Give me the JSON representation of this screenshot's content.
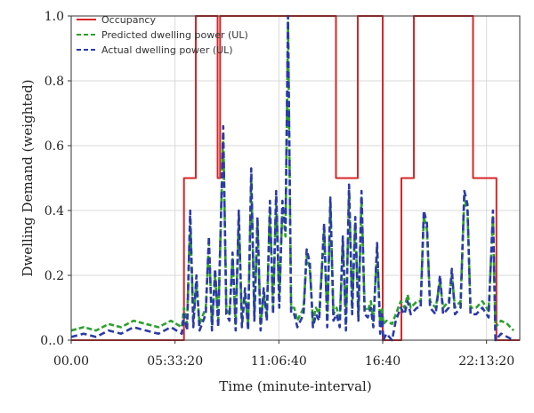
{
  "chart_data": {
    "type": "line",
    "xlabel": "Time (minute-interval)",
    "ylabel": "Dwelling Demand (weighted)",
    "xlim": [
      0,
      1440
    ],
    "ylim": [
      0,
      1.0
    ],
    "x_ticks": [
      {
        "value": 0,
        "label": "00.00"
      },
      {
        "value": 333.33,
        "label": "05:33:20"
      },
      {
        "value": 666.67,
        "label": "11:06:40"
      },
      {
        "value": 1000,
        "label": "16:40"
      },
      {
        "value": 1333.33,
        "label": "22:13:20"
      }
    ],
    "y_ticks": [
      {
        "value": 0.0,
        "label": "0..0"
      },
      {
        "value": 0.2,
        "label": "0.2"
      },
      {
        "value": 0.4,
        "label": "0.4"
      },
      {
        "value": 0.6,
        "label": "0.6"
      },
      {
        "value": 0.8,
        "label": "0.8"
      },
      {
        "value": 1.0,
        "label": "1.0"
      }
    ],
    "grid": true,
    "legend_position": "top-left",
    "series": [
      {
        "name": "Occupancy",
        "color": "#d62728",
        "style": "solid",
        "step": true,
        "points": [
          [
            0,
            0
          ],
          [
            362,
            0
          ],
          [
            362,
            0.5
          ],
          [
            400,
            0.5
          ],
          [
            400,
            1.0
          ],
          [
            470,
            1.0
          ],
          [
            470,
            0.5
          ],
          [
            478,
            0.5
          ],
          [
            478,
            1.0
          ],
          [
            850,
            1.0
          ],
          [
            850,
            0.5
          ],
          [
            920,
            0.5
          ],
          [
            920,
            1.0
          ],
          [
            1000,
            1.0
          ],
          [
            1000,
            0
          ],
          [
            1060,
            0
          ],
          [
            1060,
            0.5
          ],
          [
            1100,
            0.5
          ],
          [
            1100,
            1.0
          ],
          [
            1290,
            1.0
          ],
          [
            1290,
            0.5
          ],
          [
            1365,
            0.5
          ],
          [
            1365,
            0
          ],
          [
            1440,
            0
          ]
        ]
      },
      {
        "name": "Predicted dwelling power (UL)",
        "color": "#2ca02c",
        "style": "dashed",
        "step": false,
        "points": [
          [
            0,
            0.03
          ],
          [
            40,
            0.04
          ],
          [
            80,
            0.03
          ],
          [
            120,
            0.05
          ],
          [
            160,
            0.04
          ],
          [
            200,
            0.06
          ],
          [
            240,
            0.05
          ],
          [
            280,
            0.04
          ],
          [
            320,
            0.06
          ],
          [
            355,
            0.04
          ],
          [
            362,
            0.1
          ],
          [
            372,
            0.05
          ],
          [
            382,
            0.38
          ],
          [
            392,
            0.06
          ],
          [
            402,
            0.18
          ],
          [
            412,
            0.05
          ],
          [
            432,
            0.1
          ],
          [
            442,
            0.3
          ],
          [
            452,
            0.05
          ],
          [
            462,
            0.2
          ],
          [
            472,
            0.06
          ],
          [
            488,
            0.64
          ],
          [
            498,
            0.1
          ],
          [
            508,
            0.08
          ],
          [
            518,
            0.25
          ],
          [
            528,
            0.05
          ],
          [
            538,
            0.38
          ],
          [
            548,
            0.06
          ],
          [
            558,
            0.14
          ],
          [
            568,
            0.05
          ],
          [
            578,
            0.5
          ],
          [
            588,
            0.08
          ],
          [
            598,
            0.36
          ],
          [
            608,
            0.05
          ],
          [
            618,
            0.14
          ],
          [
            628,
            0.08
          ],
          [
            638,
            0.41
          ],
          [
            648,
            0.1
          ],
          [
            658,
            0.44
          ],
          [
            668,
            0.12
          ],
          [
            678,
            0.41
          ],
          [
            688,
            0.32
          ],
          [
            696,
            0.98
          ],
          [
            706,
            0.1
          ],
          [
            716,
            0.1
          ],
          [
            726,
            0.06
          ],
          [
            746,
            0.1
          ],
          [
            756,
            0.26
          ],
          [
            766,
            0.22
          ],
          [
            776,
            0.06
          ],
          [
            786,
            0.1
          ],
          [
            796,
            0.08
          ],
          [
            812,
            0.34
          ],
          [
            822,
            0.06
          ],
          [
            832,
            0.42
          ],
          [
            842,
            0.08
          ],
          [
            852,
            0.1
          ],
          [
            862,
            0.06
          ],
          [
            872,
            0.3
          ],
          [
            882,
            0.05
          ],
          [
            892,
            0.46
          ],
          [
            902,
            0.1
          ],
          [
            912,
            0.36
          ],
          [
            922,
            0.08
          ],
          [
            932,
            0.44
          ],
          [
            942,
            0.1
          ],
          [
            952,
            0.09
          ],
          [
            962,
            0.12
          ],
          [
            970,
            0.06
          ],
          [
            982,
            0.28
          ],
          [
            992,
            0.05
          ],
          [
            998,
            0.1
          ],
          [
            1002,
            0.05
          ],
          [
            1012,
            0.06
          ],
          [
            1030,
            0.05
          ],
          [
            1042,
            0.08
          ],
          [
            1058,
            0.12
          ],
          [
            1070,
            0.1
          ],
          [
            1080,
            0.14
          ],
          [
            1090,
            0.1
          ],
          [
            1110,
            0.12
          ],
          [
            1122,
            0.12
          ],
          [
            1132,
            0.38
          ],
          [
            1142,
            0.34
          ],
          [
            1152,
            0.12
          ],
          [
            1170,
            0.1
          ],
          [
            1184,
            0.18
          ],
          [
            1194,
            0.1
          ],
          [
            1212,
            0.12
          ],
          [
            1222,
            0.2
          ],
          [
            1232,
            0.1
          ],
          [
            1250,
            0.12
          ],
          [
            1262,
            0.44
          ],
          [
            1272,
            0.4
          ],
          [
            1282,
            0.1
          ],
          [
            1300,
            0.1
          ],
          [
            1320,
            0.12
          ],
          [
            1340,
            0.09
          ],
          [
            1354,
            0.38
          ],
          [
            1362,
            0.04
          ],
          [
            1380,
            0.06
          ],
          [
            1400,
            0.05
          ],
          [
            1420,
            0.03
          ]
        ]
      },
      {
        "name": "Actual dwelling power (UL)",
        "color": "#2b3aa8",
        "style": "dashed",
        "step": false,
        "points": [
          [
            0,
            0.01
          ],
          [
            40,
            0.02
          ],
          [
            80,
            0.01
          ],
          [
            120,
            0.03
          ],
          [
            160,
            0.02
          ],
          [
            200,
            0.04
          ],
          [
            240,
            0.03
          ],
          [
            280,
            0.02
          ],
          [
            320,
            0.04
          ],
          [
            355,
            0.02
          ],
          [
            362,
            0.08
          ],
          [
            372,
            0.03
          ],
          [
            382,
            0.4
          ],
          [
            392,
            0.04
          ],
          [
            402,
            0.2
          ],
          [
            412,
            0.03
          ],
          [
            432,
            0.08
          ],
          [
            442,
            0.32
          ],
          [
            452,
            0.03
          ],
          [
            462,
            0.22
          ],
          [
            472,
            0.04
          ],
          [
            488,
            0.66
          ],
          [
            498,
            0.08
          ],
          [
            508,
            0.06
          ],
          [
            518,
            0.27
          ],
          [
            528,
            0.03
          ],
          [
            538,
            0.4
          ],
          [
            548,
            0.04
          ],
          [
            558,
            0.16
          ],
          [
            568,
            0.03
          ],
          [
            578,
            0.53
          ],
          [
            588,
            0.06
          ],
          [
            598,
            0.38
          ],
          [
            608,
            0.03
          ],
          [
            618,
            0.16
          ],
          [
            628,
            0.06
          ],
          [
            638,
            0.43
          ],
          [
            648,
            0.08
          ],
          [
            658,
            0.46
          ],
          [
            668,
            0.1
          ],
          [
            678,
            0.43
          ],
          [
            688,
            0.34
          ],
          [
            696,
            1.0
          ],
          [
            706,
            0.08
          ],
          [
            716,
            0.08
          ],
          [
            726,
            0.04
          ],
          [
            746,
            0.08
          ],
          [
            756,
            0.28
          ],
          [
            766,
            0.24
          ],
          [
            776,
            0.04
          ],
          [
            786,
            0.08
          ],
          [
            796,
            0.06
          ],
          [
            812,
            0.36
          ],
          [
            822,
            0.04
          ],
          [
            832,
            0.44
          ],
          [
            842,
            0.06
          ],
          [
            852,
            0.08
          ],
          [
            862,
            0.04
          ],
          [
            872,
            0.32
          ],
          [
            882,
            0.03
          ],
          [
            892,
            0.48
          ],
          [
            902,
            0.08
          ],
          [
            912,
            0.38
          ],
          [
            922,
            0.06
          ],
          [
            932,
            0.46
          ],
          [
            942,
            0.08
          ],
          [
            952,
            0.07
          ],
          [
            962,
            0.1
          ],
          [
            970,
            0.04
          ],
          [
            982,
            0.3
          ],
          [
            992,
            0.02
          ],
          [
            998,
            0.08
          ],
          [
            1002,
            0.0
          ],
          [
            1012,
            0.02
          ],
          [
            1030,
            0.0
          ],
          [
            1042,
            0.06
          ],
          [
            1058,
            0.1
          ],
          [
            1070,
            0.08
          ],
          [
            1080,
            0.12
          ],
          [
            1090,
            0.08
          ],
          [
            1110,
            0.1
          ],
          [
            1122,
            0.1
          ],
          [
            1132,
            0.4
          ],
          [
            1142,
            0.36
          ],
          [
            1152,
            0.1
          ],
          [
            1170,
            0.08
          ],
          [
            1184,
            0.2
          ],
          [
            1194,
            0.08
          ],
          [
            1212,
            0.1
          ],
          [
            1222,
            0.22
          ],
          [
            1232,
            0.08
          ],
          [
            1250,
            0.1
          ],
          [
            1262,
            0.46
          ],
          [
            1272,
            0.42
          ],
          [
            1282,
            0.08
          ],
          [
            1300,
            0.08
          ],
          [
            1320,
            0.1
          ],
          [
            1340,
            0.07
          ],
          [
            1354,
            0.4
          ],
          [
            1362,
            0.0
          ],
          [
            1380,
            0.02
          ],
          [
            1400,
            0.01
          ],
          [
            1420,
            0.0
          ]
        ]
      }
    ]
  }
}
